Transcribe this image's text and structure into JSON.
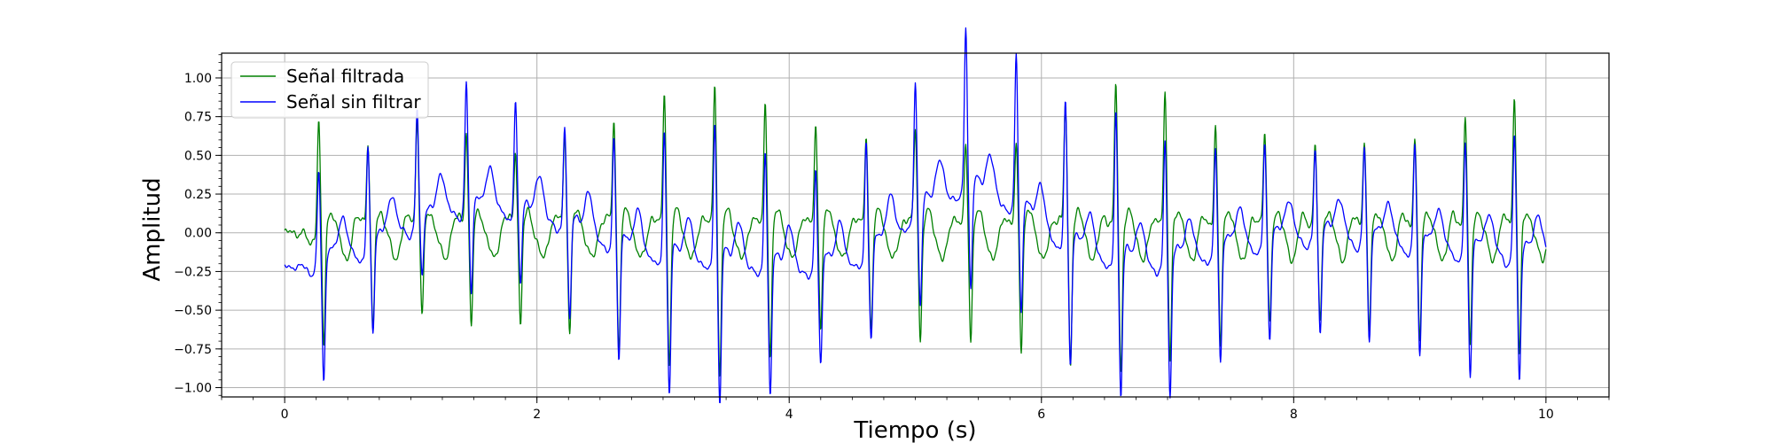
{
  "chart_data": {
    "type": "line",
    "xlabel": "Tiempo (s)",
    "ylabel": "Amplitud",
    "xlim": [
      -0.5,
      10.5
    ],
    "ylim": [
      -1.06,
      1.16
    ],
    "xticks": [
      0,
      2,
      4,
      6,
      8,
      10
    ],
    "yticks": [
      -1.0,
      -0.75,
      -0.5,
      -0.25,
      0.0,
      0.25,
      0.5,
      0.75,
      1.0
    ],
    "ytick_labels": [
      "−1.00",
      "−0.75",
      "−0.50",
      "−0.25",
      "0.00",
      "0.25",
      "0.50",
      "0.75",
      "1.00"
    ],
    "grid": true,
    "minor_ticks": true,
    "legend_position": "top-left",
    "beat_times": [
      0.27,
      0.66,
      1.05,
      1.44,
      1.83,
      2.22,
      2.61,
      3.01,
      3.41,
      3.81,
      4.21,
      4.61,
      5.0,
      5.4,
      5.8,
      6.19,
      6.59,
      6.98,
      7.38,
      7.77,
      8.17,
      8.56,
      8.96,
      9.36,
      9.75
    ],
    "series": [
      {
        "name": "Señal filtrada",
        "color": "#008000",
        "peaks": [
          0.72,
          0.55,
          0.72,
          0.64,
          0.52,
          0.6,
          0.7,
          0.9,
          0.95,
          0.82,
          0.67,
          0.6,
          0.65,
          0.55,
          0.55,
          0.8,
          0.95,
          0.85,
          0.65,
          0.62,
          0.55,
          0.55,
          0.6,
          0.75,
          0.85
        ],
        "troughs": [
          -0.75,
          -0.67,
          -0.56,
          -0.61,
          -0.62,
          -0.66,
          -0.76,
          -0.88,
          -0.95,
          -0.81,
          -0.62,
          -0.63,
          -0.71,
          -0.7,
          -0.76,
          -0.87,
          -0.92,
          -0.84,
          -0.74,
          -0.62,
          -0.61,
          -0.65,
          -0.72,
          -0.76,
          -0.82
        ]
      },
      {
        "name": "Señal sin filtrar",
        "color": "#0000ff",
        "peaks": [
          0.61,
          0.66,
          0.75,
          0.82,
          0.74,
          0.66,
          0.72,
          0.84,
          0.92,
          0.78,
          0.67,
          0.77,
          0.88,
          1.06,
          1.02,
          0.96,
          1.0,
          0.82,
          0.68,
          0.64,
          0.57,
          0.6,
          0.65,
          0.7,
          0.8
        ],
        "troughs": [
          -0.76,
          -0.55,
          -0.37,
          -0.57,
          -0.46,
          -0.61,
          -0.74,
          -0.88,
          -0.93,
          -0.84,
          -0.63,
          -0.55,
          -0.6,
          -0.65,
          -0.66,
          -0.74,
          -0.86,
          -0.86,
          -0.7,
          -0.62,
          -0.62,
          -0.66,
          -0.7,
          -0.8,
          -0.82
        ],
        "baseline_offsets": [
          -0.22,
          -0.12,
          0.05,
          0.15,
          0.12,
          0.04,
          -0.1,
          -0.18,
          -0.2,
          -0.24,
          -0.25,
          -0.18,
          0.1,
          0.28,
          0.15,
          -0.1,
          -0.2,
          -0.22,
          -0.14,
          -0.08,
          -0.04,
          -0.06,
          -0.1,
          -0.14,
          -0.16
        ]
      }
    ]
  }
}
